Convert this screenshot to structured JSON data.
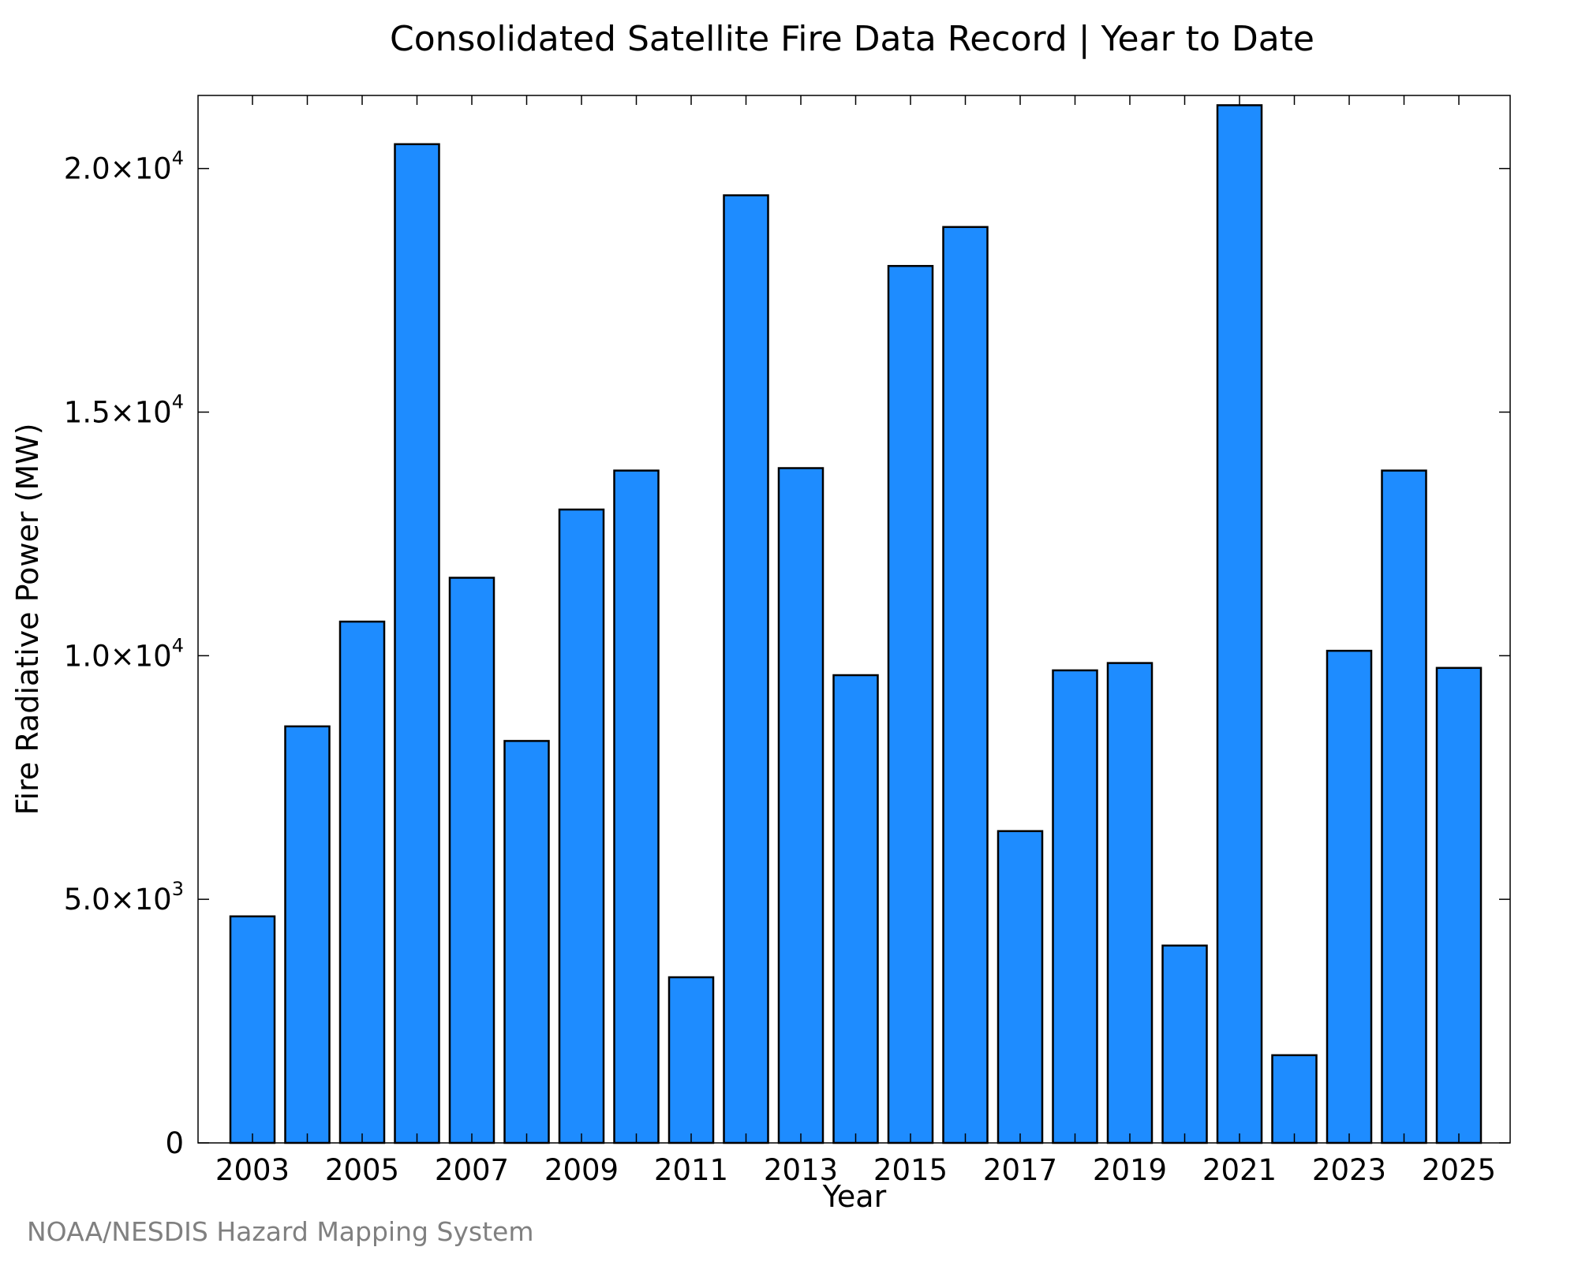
{
  "chart_data": {
    "type": "bar",
    "title": "Consolidated Satellite Fire Data Record | Year to Date",
    "xlabel": "Year",
    "ylabel": "Fire Radiative Power (MW)",
    "categories": [
      "2003",
      "2004",
      "2005",
      "2006",
      "2007",
      "2008",
      "2009",
      "2010",
      "2011",
      "2012",
      "2013",
      "2014",
      "2015",
      "2016",
      "2017",
      "2018",
      "2019",
      "2020",
      "2021",
      "2022",
      "2023",
      "2024",
      "2025"
    ],
    "values": [
      4650,
      8550,
      10700,
      20500,
      11600,
      8250,
      13000,
      13800,
      3400,
      19450,
      13850,
      9600,
      18000,
      18800,
      6400,
      9700,
      9850,
      4050,
      21300,
      1800,
      10100,
      13800,
      9750
    ],
    "ylim": [
      0,
      21500
    ],
    "yticks": [
      {
        "value": 0,
        "mantissa": "0",
        "exponent": ""
      },
      {
        "value": 5000,
        "mantissa": "5.0×10",
        "exponent": "3"
      },
      {
        "value": 10000,
        "mantissa": "1.0×10",
        "exponent": "4"
      },
      {
        "value": 15000,
        "mantissa": "1.5×10",
        "exponent": "4"
      },
      {
        "value": 20000,
        "mantissa": "2.0×10",
        "exponent": "4"
      }
    ],
    "xtick_labels": [
      "2003",
      "2005",
      "2007",
      "2009",
      "2011",
      "2013",
      "2015",
      "2017",
      "2019",
      "2021",
      "2023",
      "2025"
    ],
    "grid": false,
    "bar_color": "#1e8cff",
    "bar_edge_color": "#000000"
  },
  "source_note": "NOAA/NESDIS Hazard Mapping System"
}
